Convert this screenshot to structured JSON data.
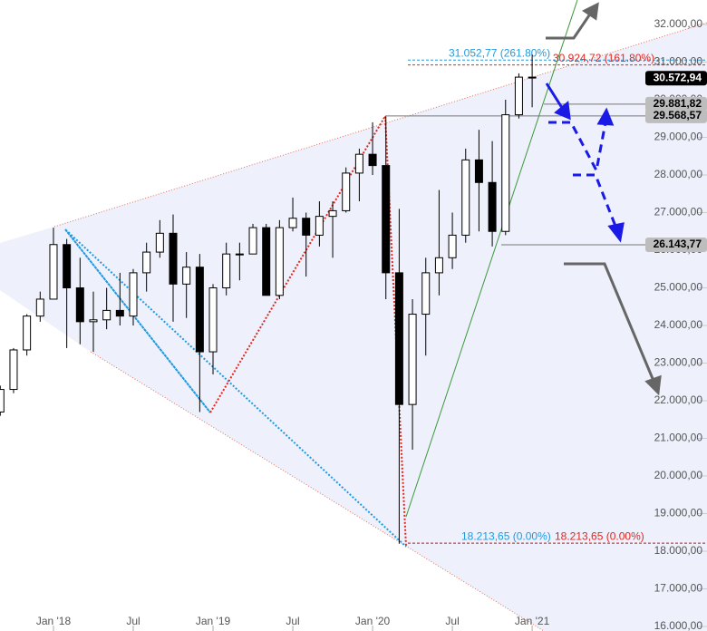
{
  "chart_data": {
    "type": "candlestick",
    "categories": [
      null,
      null,
      null,
      null,
      "Jan '18",
      null,
      null,
      null,
      null,
      null,
      "Jul",
      null,
      null,
      null,
      null,
      null,
      "Jan '19",
      null,
      null,
      null,
      null,
      null,
      "Jul",
      null,
      null,
      null,
      null,
      null,
      "Jan '20",
      null,
      null,
      null,
      null,
      null,
      "Jul",
      null,
      null,
      null,
      null,
      null,
      "Jan '21"
    ],
    "open": [
      21700,
      22300,
      23350,
      24250,
      24700,
      26150,
      25000,
      24100,
      24150,
      24400,
      24250,
      25400,
      25950,
      26450,
      25100,
      25550,
      23300,
      25000,
      25900,
      25900,
      26600,
      24800,
      26600,
      26850,
      26400,
      26900,
      27050,
      28050,
      28550,
      28250,
      25400,
      21900,
      24300,
      25400,
      25800,
      26400,
      28400,
      27800,
      26500,
      29600,
      30600
    ],
    "high": [
      22400,
      23400,
      24300,
      24900,
      26600,
      26300,
      25800,
      24900,
      25000,
      25400,
      25500,
      26200,
      26800,
      26950,
      25950,
      25900,
      25100,
      26200,
      26200,
      26700,
      26700,
      26800,
      27400,
      27000,
      27300,
      27300,
      28200,
      28700,
      29400,
      29550,
      27100,
      24700,
      25800,
      27600,
      27000,
      28700,
      29200,
      28900,
      30000,
      30700,
      31200
    ],
    "low": [
      21600,
      22200,
      23200,
      24100,
      24700,
      23400,
      23500,
      23300,
      23900,
      24000,
      24000,
      24900,
      25800,
      24100,
      24200,
      21700,
      22700,
      24800,
      25200,
      25900,
      24900,
      24700,
      26500,
      25300,
      26100,
      25800,
      27000,
      27300,
      28000,
      24700,
      18200,
      20700,
      23200,
      24800,
      25500,
      26200,
      26500,
      26100,
      26400,
      29500,
      29800
    ],
    "close": [
      22300,
      23350,
      24250,
      24700,
      26150,
      25000,
      24100,
      24150,
      24400,
      24250,
      25400,
      25950,
      26450,
      25100,
      25550,
      23300,
      25000,
      25900,
      25900,
      26600,
      24800,
      26600,
      26850,
      26400,
      26900,
      27050,
      28050,
      28550,
      28250,
      25400,
      21900,
      24300,
      25400,
      25800,
      26400,
      28400,
      27800,
      26500,
      29600,
      30600,
      30600
    ],
    "up_color": "#ffffff",
    "down_color": "#000000",
    "ylim": [
      15880,
      32650
    ],
    "yticks": [
      {
        "value": 16000,
        "label": "16.000,00"
      },
      {
        "value": 17000,
        "label": "17.000,00"
      },
      {
        "value": 18000,
        "label": "18.000,00"
      },
      {
        "value": 19000,
        "label": "19.000,00"
      },
      {
        "value": 20000,
        "label": "20.000,00"
      },
      {
        "value": 21000,
        "label": "21.000,00"
      },
      {
        "value": 22000,
        "label": "22.000,00"
      },
      {
        "value": 23000,
        "label": "23.000,00"
      },
      {
        "value": 24000,
        "label": "24.000,00"
      },
      {
        "value": 25000,
        "label": "25.000,00"
      },
      {
        "value": 26000,
        "label": "26.000,00"
      },
      {
        "value": 27000,
        "label": "27.000,00"
      },
      {
        "value": 28000,
        "label": "28.000,00"
      },
      {
        "value": 29000,
        "label": "29.000,00"
      },
      {
        "value": 30000,
        "label": "30.000,00"
      },
      {
        "value": 31000,
        "label": "31.000,00"
      },
      {
        "value": 32000,
        "label": "32.000,00"
      }
    ],
    "price_tags": [
      {
        "value": 30572.94,
        "label": "30.572,94",
        "color": "#000000",
        "text_color": "#ffffff"
      },
      {
        "value": 29881.82,
        "label": "29.881,82",
        "color": "#bdbdbd",
        "text_color": "#000000"
      },
      {
        "value": 29568.57,
        "label": "29.568,57",
        "color": "#bdbdbd",
        "text_color": "#000000"
      },
      {
        "value": 26143.77,
        "label": "26.143,77",
        "color": "#bdbdbd",
        "text_color": "#000000"
      }
    ],
    "fib_levels": [
      {
        "value": 31052.77,
        "label": "31.052,77 (261.80%)",
        "color": "#1e9be0"
      },
      {
        "value": 30924.72,
        "label": "30.924,72 (161.80%)",
        "color": "#e0281e"
      },
      {
        "value": 18213.65,
        "label": "18.213,65 (0.00%)",
        "color": "#1e9be0"
      },
      {
        "value": 18213.65,
        "label": "18.213,65 (0.00%)",
        "color": "#e0281e"
      }
    ]
  }
}
